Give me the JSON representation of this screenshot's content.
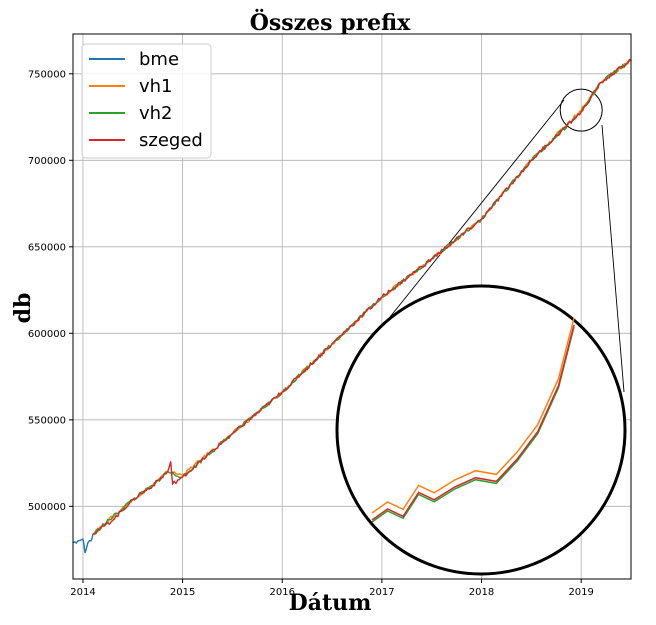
{
  "chart_data": {
    "type": "line",
    "title": "Összes prefix",
    "xlabel": "Dátum",
    "ylabel": "db",
    "xlim": [
      2013.9,
      2019.5
    ],
    "ylim": [
      458000,
      773000
    ],
    "x_ticks": [
      2014,
      2015,
      2016,
      2017,
      2018,
      2019
    ],
    "x_tick_labels": [
      "2014",
      "2015",
      "2016",
      "2017",
      "2018",
      "2019"
    ],
    "y_ticks": [
      500000,
      550000,
      600000,
      650000,
      700000,
      750000
    ],
    "y_tick_labels": [
      "500000",
      "550000",
      "600000",
      "650000",
      "700000",
      "750000"
    ],
    "grid": true,
    "legend_position": "top-left",
    "series": [
      {
        "name": "bme",
        "color": "#1f77b4",
        "x": [
          2013.9,
          2013.95,
          2014.0,
          2014.02,
          2014.05,
          2014.08,
          2014.1
        ],
        "y": [
          479000,
          480000,
          481000,
          473000,
          479000,
          480000,
          484000
        ]
      },
      {
        "name": "vh1",
        "color": "#ff7f0e",
        "x": [
          2014.1,
          2014.5,
          2014.7,
          2014.85,
          2015.0,
          2015.5,
          2016.0,
          2016.5,
          2017.0,
          2017.5,
          2018.0,
          2018.5,
          2019.0,
          2019.2,
          2019.5
        ],
        "y": [
          484000,
          504000,
          512000,
          520000,
          518000,
          542000,
          566000,
          594000,
          621000,
          643000,
          666000,
          700000,
          729000,
          745000,
          758000
        ]
      },
      {
        "name": "vh2",
        "color": "#2ca02c",
        "x": [
          2014.1,
          2014.5,
          2014.7,
          2014.85,
          2015.0,
          2015.5,
          2016.0,
          2016.5,
          2017.0,
          2017.5,
          2018.0,
          2018.5,
          2019.0,
          2019.2,
          2019.5
        ],
        "y": [
          484000,
          504000,
          512000,
          520000,
          517000,
          542000,
          566000,
          594000,
          621000,
          643000,
          666000,
          700000,
          728000,
          745000,
          758000
        ]
      },
      {
        "name": "szeged",
        "color": "#d62728",
        "x": [
          2014.1,
          2014.3,
          2014.5,
          2014.7,
          2014.85,
          2014.88,
          2014.9,
          2015.0,
          2015.5,
          2016.0,
          2016.5,
          2017.0,
          2017.5,
          2018.0,
          2018.5,
          2019.0,
          2019.2,
          2019.5
        ],
        "y": [
          484000,
          492000,
          504000,
          512000,
          520000,
          526000,
          513000,
          517000,
          542000,
          566000,
          594000,
          621000,
          643000,
          666000,
          700000,
          728000,
          745000,
          758000
        ]
      }
    ]
  }
}
